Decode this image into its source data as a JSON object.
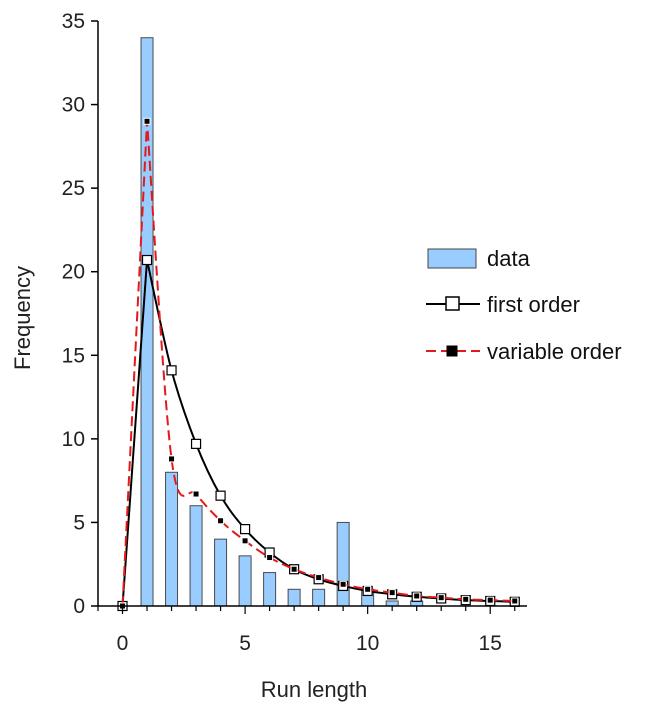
{
  "chart_data": {
    "type": "bar",
    "xlabel": "Run length",
    "ylabel": "Frequency",
    "xlim": [
      -1,
      16.5
    ],
    "ylim": [
      0,
      35
    ],
    "xticks": [
      0,
      5,
      10,
      15
    ],
    "yticks": [
      0,
      5,
      10,
      15,
      20,
      25,
      30,
      35
    ],
    "grid": false,
    "legend_position": "right",
    "colors": {
      "data": "#99ccff",
      "first_order": "#000000",
      "variable_order": "#e31a1c"
    },
    "x": [
      0,
      1,
      2,
      3,
      4,
      5,
      6,
      7,
      8,
      9,
      10,
      11,
      12,
      13,
      14,
      15,
      16
    ],
    "series": [
      {
        "name": "data",
        "kind": "bar",
        "values": [
          0,
          34,
          8,
          6,
          4,
          3,
          2,
          1,
          1,
          5,
          1,
          0.3,
          0.3,
          0,
          0,
          0,
          0
        ]
      },
      {
        "name": "first order",
        "kind": "line",
        "values": [
          0,
          20.7,
          14.1,
          9.7,
          6.6,
          4.6,
          3.2,
          2.2,
          1.6,
          1.2,
          0.9,
          0.7,
          0.55,
          0.45,
          0.35,
          0.3,
          0.25
        ]
      },
      {
        "name": "variable order",
        "kind": "line",
        "values": [
          0,
          29,
          8.8,
          6.7,
          5.1,
          3.9,
          2.9,
          2.2,
          1.7,
          1.3,
          1.0,
          0.8,
          0.6,
          0.5,
          0.4,
          0.35,
          0.3
        ]
      }
    ]
  }
}
